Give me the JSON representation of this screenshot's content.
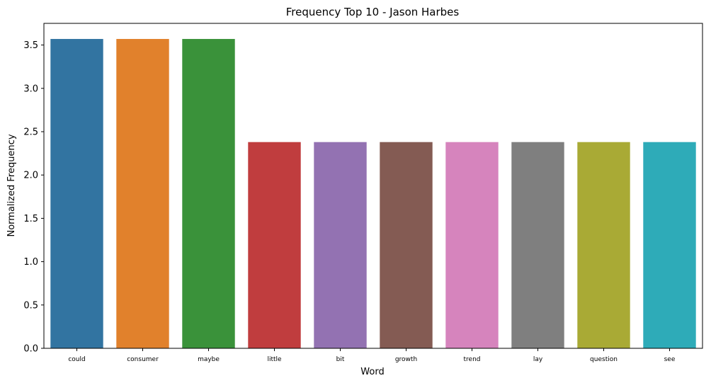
{
  "chart_data": {
    "type": "bar",
    "title": "Frequency Top 10 - Jason Harbes",
    "xlabel": "Word",
    "ylabel": "Normalized Frequency",
    "categories": [
      "could",
      "consumer",
      "maybe",
      "little",
      "bit",
      "growth",
      "trend",
      "lay",
      "question",
      "see"
    ],
    "values": [
      3.57,
      3.57,
      3.57,
      2.38,
      2.38,
      2.38,
      2.38,
      2.38,
      2.38,
      2.38
    ],
    "colors": [
      "#3274a1",
      "#e1812c",
      "#3a923a",
      "#c03d3e",
      "#9372b2",
      "#845b53",
      "#d684bd",
      "#7f7f7f",
      "#a9aa35",
      "#2eabb8"
    ],
    "ylim": [
      0,
      3.75
    ],
    "yticks": [
      "0.0",
      "0.5",
      "1.0",
      "1.5",
      "2.0",
      "2.5",
      "3.0",
      "3.5"
    ],
    "grid": false,
    "legend": false
  }
}
